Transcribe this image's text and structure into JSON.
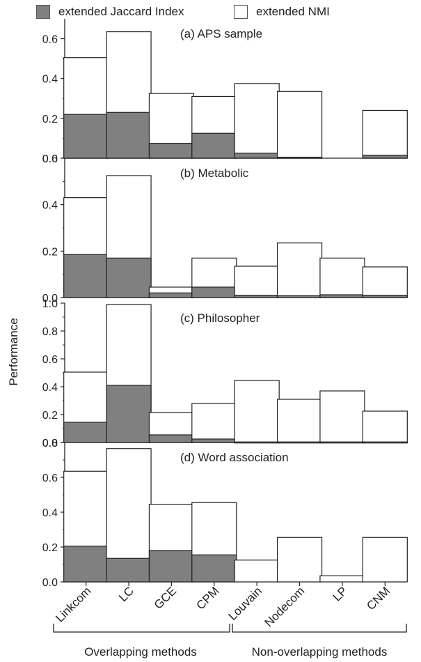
{
  "legend": {
    "jaccard_label": "extended Jaccard Index",
    "nmi_label": "extended NMI",
    "jaccard_color": "#808080",
    "nmi_color": "#ffffff"
  },
  "ylabel": "Performance",
  "group_labels": [
    "Overlapping methods",
    "Non-overlapping methods"
  ],
  "chart_data": [
    {
      "type": "bar",
      "title": "(a) APS sample",
      "categories": [
        "Linkcom",
        "LC",
        "GCE",
        "CPM",
        "Louvain",
        "Nodecom",
        "LP",
        "CNM"
      ],
      "ylim": [
        0,
        0.7
      ],
      "yticks": [
        0.0,
        0.2,
        0.4,
        0.6
      ],
      "yticklabels": [
        "0.0",
        "0.2",
        "0.4",
        "0.6"
      ],
      "series": [
        {
          "name": "extended Jaccard Index",
          "values": [
            0.22,
            0.23,
            0.075,
            0.125,
            0.025,
            0.005,
            0.0,
            0.015
          ]
        },
        {
          "name": "extended NMI",
          "values": [
            0.505,
            0.635,
            0.325,
            0.31,
            0.375,
            0.335,
            0.0,
            0.24
          ]
        }
      ]
    },
    {
      "type": "bar",
      "title": "(b) Metabolic",
      "categories": [
        "Linkcom",
        "LC",
        "GCE",
        "CPM",
        "Louvain",
        "Nodecom",
        "LP",
        "CNM"
      ],
      "ylim": [
        0,
        0.6
      ],
      "yticks": [
        0.0,
        0.2,
        0.4,
        0.6
      ],
      "yticklabels": [
        "0.0",
        "0.2",
        "0.4",
        "0.6"
      ],
      "series": [
        {
          "name": "extended Jaccard Index",
          "values": [
            0.185,
            0.17,
            0.02,
            0.045,
            0.01,
            0.008,
            0.012,
            0.01
          ]
        },
        {
          "name": "extended NMI",
          "values": [
            0.43,
            0.525,
            0.045,
            0.17,
            0.135,
            0.235,
            0.17,
            0.132
          ]
        }
      ]
    },
    {
      "type": "bar",
      "title": "(c) Philosopher",
      "categories": [
        "Linkcom",
        "LC",
        "GCE",
        "CPM",
        "Louvain",
        "Nodecom",
        "LP",
        "CNM"
      ],
      "ylim": [
        0,
        1.0
      ],
      "yticks": [
        0.0,
        0.2,
        0.4,
        0.6,
        0.8,
        1.0
      ],
      "yticklabels": [
        "0.0",
        "0.2",
        "0.4",
        "0.6",
        "0.8",
        "1.0"
      ],
      "series": [
        {
          "name": "extended Jaccard Index",
          "values": [
            0.145,
            0.41,
            0.055,
            0.025,
            0.004,
            0.004,
            0.004,
            0.004
          ]
        },
        {
          "name": "extended NMI",
          "values": [
            0.505,
            0.99,
            0.215,
            0.28,
            0.445,
            0.31,
            0.37,
            0.225
          ]
        }
      ]
    },
    {
      "type": "bar",
      "title": "(d) Word association",
      "categories": [
        "Linkcom",
        "LC",
        "GCE",
        "CPM",
        "Louvain",
        "Nodecom",
        "LP",
        "CNM"
      ],
      "ylim": [
        0,
        0.8
      ],
      "yticks": [
        0.0,
        0.2,
        0.4,
        0.6,
        0.8
      ],
      "yticklabels": [
        "0.0",
        "0.2",
        "0.4",
        "0.6",
        "0.8"
      ],
      "series": [
        {
          "name": "extended Jaccard Index",
          "values": [
            0.205,
            0.135,
            0.18,
            0.155,
            0.0,
            0.0,
            0.0,
            0.0
          ]
        },
        {
          "name": "extended NMI",
          "values": [
            0.635,
            0.765,
            0.445,
            0.455,
            0.125,
            0.255,
            0.035,
            0.255
          ]
        }
      ]
    }
  ]
}
